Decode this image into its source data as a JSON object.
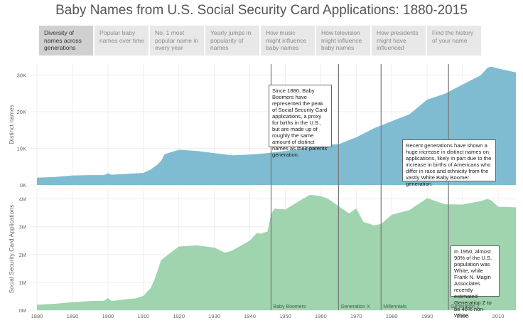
{
  "title": "Baby Names from U.S. Social Security Card Applications: 1880-2015",
  "tabs": [
    {
      "label": "Diversity of names across generations",
      "active": true
    },
    {
      "label": "Popular baby names over time",
      "active": false
    },
    {
      "label": "No. 1 most popular name in every year",
      "active": false
    },
    {
      "label": "Yearly jumps in popularity of names",
      "active": false
    },
    {
      "label": "How music might influence baby names",
      "active": false
    },
    {
      "label": "How television might influence baby names",
      "active": false
    },
    {
      "label": "How presidents might have influenced",
      "active": false
    },
    {
      "label": "Find the history of your name",
      "active": false
    }
  ],
  "annotations": {
    "boomers": "Since 1880, Baby Boomers have represented the peak of Social Security Card applications, a proxy for births in the U.S., but are made up of roughly the same amount of distinct names as their parents' generation.",
    "recent": "Recent generations have shown a huge increase in distinct names on applications, likely in part due to the increase in births of Americans who differ in race and ethnicity from the vastly White Baby Boomer generation.",
    "genz": "In 1950, almost 90% of the U.S. population was White, while Frank N. Magin Associates recently estimated Generation Z to be 46% non-White."
  },
  "colors": {
    "top_fill": "#7fbcd2",
    "bottom_fill": "#9fd4ae",
    "grid": "#eeeeee",
    "generation_line": "#777777",
    "axis_text": "#666666"
  },
  "chart_data": [
    {
      "type": "area",
      "ylabel": "Distinct names",
      "xlim": [
        1878,
        2015
      ],
      "ylim": [
        0,
        33000
      ],
      "yticks": [
        {
          "value": 0,
          "label": "0K"
        },
        {
          "value": 10000,
          "label": "10K"
        },
        {
          "value": 20000,
          "label": "20K"
        },
        {
          "value": 30000,
          "label": "30K"
        }
      ],
      "grid": true,
      "x": [
        1880,
        1885,
        1890,
        1895,
        1899,
        1900,
        1901,
        1905,
        1910,
        1912,
        1914,
        1915,
        1916,
        1918,
        1920,
        1925,
        1930,
        1935,
        1940,
        1945,
        1950,
        1955,
        1960,
        1965,
        1970,
        1975,
        1980,
        1985,
        1990,
        1995,
        2000,
        2005,
        2007,
        2008,
        2010,
        2015
      ],
      "values": [
        2000,
        2200,
        2600,
        2700,
        2700,
        3200,
        2800,
        3000,
        3300,
        4200,
        5600,
        6600,
        8400,
        9000,
        9600,
        9300,
        8700,
        8100,
        8300,
        8700,
        9300,
        9900,
        10900,
        11100,
        13000,
        15500,
        17400,
        19300,
        23300,
        24900,
        27400,
        29900,
        32000,
        32300,
        31800,
        30700
      ]
    },
    {
      "type": "area",
      "ylabel": "Social Security Card Applications",
      "xlim": [
        1878,
        2015
      ],
      "ylim": [
        0,
        4400000
      ],
      "yticks": [
        {
          "value": 0,
          "label": "0M"
        },
        {
          "value": 1000000,
          "label": "1M"
        },
        {
          "value": 2000000,
          "label": "2M"
        },
        {
          "value": 3000000,
          "label": "3M"
        },
        {
          "value": 4000000,
          "label": "4M"
        }
      ],
      "grid": true,
      "x": [
        1880,
        1885,
        1890,
        1895,
        1899,
        1900,
        1901,
        1905,
        1908,
        1910,
        1912,
        1913,
        1915,
        1917,
        1920,
        1925,
        1930,
        1933,
        1935,
        1940,
        1942,
        1943,
        1945,
        1946,
        1947,
        1950,
        1955,
        1957,
        1960,
        1962,
        1965,
        1968,
        1970,
        1972,
        1975,
        1977,
        1980,
        1985,
        1990,
        1995,
        2000,
        2005,
        2007,
        2008,
        2010,
        2015
      ],
      "values": [
        200000,
        230000,
        290000,
        330000,
        340000,
        440000,
        330000,
        390000,
        430000,
        520000,
        790000,
        1050000,
        1800000,
        2000000,
        2290000,
        2330000,
        2250000,
        2070000,
        2140000,
        2500000,
        2780000,
        2750000,
        2830000,
        3450000,
        3650000,
        3620000,
        4010000,
        4150000,
        4100000,
        4010000,
        3740000,
        3480000,
        3660000,
        3180000,
        3050000,
        3100000,
        3430000,
        3600000,
        4030000,
        3810000,
        3800000,
        3920000,
        4000000,
        3950000,
        3720000,
        3700000
      ]
    }
  ],
  "xaxis": {
    "ticks": [
      1880,
      1890,
      1900,
      1910,
      1920,
      1930,
      1940,
      1950,
      1960,
      1970,
      1980,
      1990,
      2000,
      2010
    ]
  },
  "generations": [
    {
      "name": "Baby Boomers",
      "start": 1946
    },
    {
      "name": "Generation X",
      "start": 1965
    },
    {
      "name": "Millennials",
      "start": 1977
    },
    {
      "name": "Generation Z",
      "start": 1996
    }
  ]
}
